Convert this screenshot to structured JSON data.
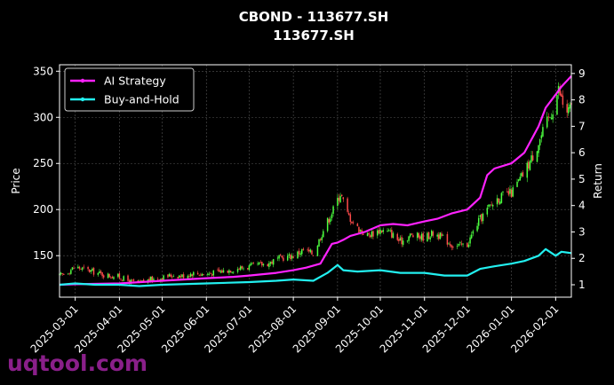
{
  "chart_data": {
    "type": "candlestick+line",
    "title": "CBOND - 113677.SH",
    "subtitle": "113677.SH",
    "ylabel_left": "Price",
    "ylabel_right": "Return",
    "ylim_price": [
      105,
      357
    ],
    "ylim_return": [
      0.53,
      9.33
    ],
    "yticks_price": [
      150,
      200,
      250,
      300,
      350
    ],
    "yticks_return": [
      1,
      2,
      3,
      4,
      5,
      6,
      7,
      8,
      9
    ],
    "xlim": [
      "2025-02-18",
      "2026-02-12"
    ],
    "xticks": [
      "2025-03-01",
      "2025-04-01",
      "2025-05-01",
      "2025-06-01",
      "2025-07-01",
      "2025-08-01",
      "2025-09-01",
      "2025-10-01",
      "2025-11-01",
      "2025-12-01",
      "2026-01-01",
      "2026-02-01"
    ],
    "grid": true,
    "legend_position": "upper-left",
    "colors": {
      "up": "#4cff3f",
      "down": "#ff4a4a",
      "ai": "#ff22ff",
      "bh": "#22f0f0",
      "background": "#000000"
    },
    "series": [
      {
        "name": "AI Strategy",
        "points": [
          [
            "2025-02-18",
            1.0
          ],
          [
            "2025-03-01",
            1.02
          ],
          [
            "2025-04-01",
            1.05
          ],
          [
            "2025-05-01",
            1.15
          ],
          [
            "2025-06-01",
            1.25
          ],
          [
            "2025-06-20",
            1.3
          ],
          [
            "2025-07-01",
            1.35
          ],
          [
            "2025-07-20",
            1.45
          ],
          [
            "2025-08-01",
            1.55
          ],
          [
            "2025-08-10",
            1.65
          ],
          [
            "2025-08-20",
            1.8
          ],
          [
            "2025-08-28",
            2.55
          ],
          [
            "2025-09-01",
            2.6
          ],
          [
            "2025-09-05",
            2.7
          ],
          [
            "2025-09-10",
            2.85
          ],
          [
            "2025-09-20",
            3.0
          ],
          [
            "2025-10-01",
            3.25
          ],
          [
            "2025-10-10",
            3.3
          ],
          [
            "2025-10-20",
            3.25
          ],
          [
            "2025-11-01",
            3.4
          ],
          [
            "2025-11-10",
            3.5
          ],
          [
            "2025-11-20",
            3.7
          ],
          [
            "2025-12-01",
            3.85
          ],
          [
            "2025-12-10",
            4.3
          ],
          [
            "2025-12-15",
            5.15
          ],
          [
            "2025-12-20",
            5.4
          ],
          [
            "2026-01-01",
            5.6
          ],
          [
            "2026-01-10",
            6.0
          ],
          [
            "2026-01-20",
            7.0
          ],
          [
            "2026-01-25",
            7.7
          ],
          [
            "2026-02-01",
            8.2
          ],
          [
            "2026-02-05",
            8.5
          ],
          [
            "2026-02-12",
            8.9
          ]
        ]
      },
      {
        "name": "Buy-and-Hold",
        "points": [
          [
            "2025-02-18",
            1.0
          ],
          [
            "2025-03-01",
            1.05
          ],
          [
            "2025-03-15",
            1.0
          ],
          [
            "2025-04-01",
            1.0
          ],
          [
            "2025-04-15",
            0.95
          ],
          [
            "2025-05-01",
            1.0
          ],
          [
            "2025-06-01",
            1.05
          ],
          [
            "2025-07-01",
            1.1
          ],
          [
            "2025-07-20",
            1.15
          ],
          [
            "2025-08-01",
            1.2
          ],
          [
            "2025-08-15",
            1.15
          ],
          [
            "2025-08-25",
            1.45
          ],
          [
            "2025-09-01",
            1.75
          ],
          [
            "2025-09-05",
            1.55
          ],
          [
            "2025-09-15",
            1.5
          ],
          [
            "2025-10-01",
            1.55
          ],
          [
            "2025-10-15",
            1.45
          ],
          [
            "2025-11-01",
            1.45
          ],
          [
            "2025-11-15",
            1.35
          ],
          [
            "2025-12-01",
            1.35
          ],
          [
            "2025-12-10",
            1.6
          ],
          [
            "2025-12-20",
            1.7
          ],
          [
            "2026-01-01",
            1.8
          ],
          [
            "2026-01-10",
            1.9
          ],
          [
            "2026-01-20",
            2.1
          ],
          [
            "2026-01-25",
            2.35
          ],
          [
            "2026-02-01",
            2.1
          ],
          [
            "2026-02-05",
            2.25
          ],
          [
            "2026-02-12",
            2.2
          ]
        ]
      }
    ],
    "price_series": [
      [
        "2025-02-18",
        128
      ],
      [
        "2025-02-24",
        133
      ],
      [
        "2025-03-01",
        138
      ],
      [
        "2025-03-08",
        135
      ],
      [
        "2025-03-15",
        132
      ],
      [
        "2025-03-22",
        129
      ],
      [
        "2025-04-01",
        127
      ],
      [
        "2025-04-08",
        122
      ],
      [
        "2025-04-15",
        120
      ],
      [
        "2025-04-22",
        124
      ],
      [
        "2025-05-01",
        126
      ],
      [
        "2025-05-08",
        129
      ],
      [
        "2025-05-15",
        128
      ],
      [
        "2025-05-22",
        131
      ],
      [
        "2025-06-01",
        130
      ],
      [
        "2025-06-08",
        132
      ],
      [
        "2025-06-15",
        134
      ],
      [
        "2025-06-22",
        136
      ],
      [
        "2025-07-01",
        138
      ],
      [
        "2025-07-08",
        140
      ],
      [
        "2025-07-15",
        142
      ],
      [
        "2025-07-22",
        147
      ],
      [
        "2025-08-01",
        150
      ],
      [
        "2025-08-08",
        156
      ],
      [
        "2025-08-15",
        152
      ],
      [
        "2025-08-22",
        178
      ],
      [
        "2025-08-29",
        200
      ],
      [
        "2025-09-03",
        218
      ],
      [
        "2025-09-08",
        195
      ],
      [
        "2025-09-15",
        180
      ],
      [
        "2025-09-22",
        172
      ],
      [
        "2025-10-01",
        178
      ],
      [
        "2025-10-08",
        175
      ],
      [
        "2025-10-15",
        165
      ],
      [
        "2025-10-22",
        172
      ],
      [
        "2025-11-01",
        170
      ],
      [
        "2025-11-08",
        175
      ],
      [
        "2025-11-15",
        168
      ],
      [
        "2025-11-22",
        160
      ],
      [
        "2025-12-01",
        162
      ],
      [
        "2025-12-08",
        185
      ],
      [
        "2025-12-15",
        200
      ],
      [
        "2025-12-22",
        212
      ],
      [
        "2026-01-01",
        218
      ],
      [
        "2026-01-08",
        235
      ],
      [
        "2026-01-15",
        255
      ],
      [
        "2026-01-22",
        280
      ],
      [
        "2026-01-29",
        305
      ],
      [
        "2026-02-03",
        330
      ],
      [
        "2026-02-08",
        305
      ],
      [
        "2026-02-12",
        310
      ]
    ]
  },
  "watermark": "uqtool.com"
}
